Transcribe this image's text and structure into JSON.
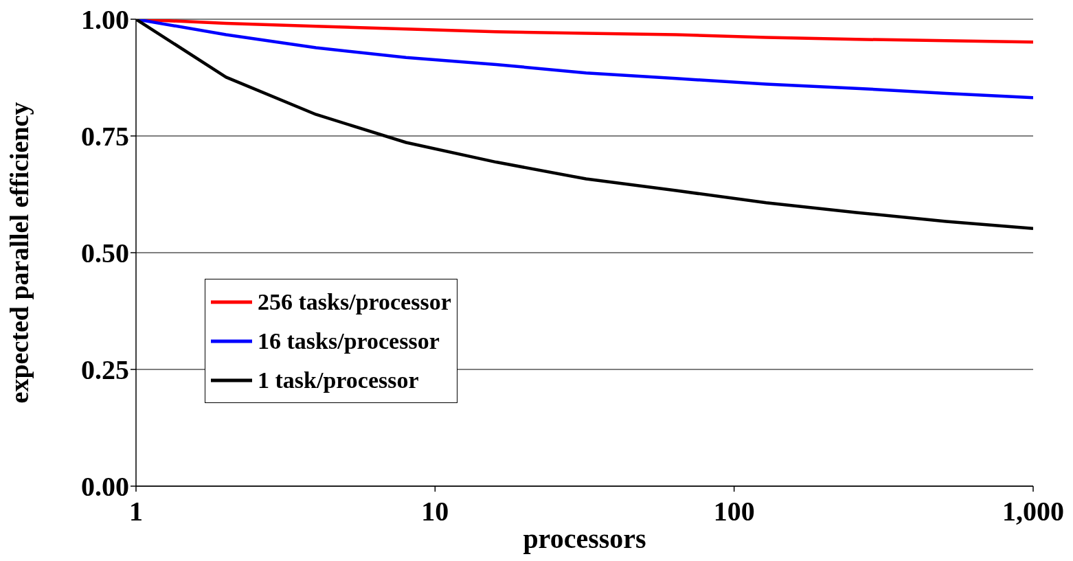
{
  "chart_data": {
    "type": "line",
    "xlabel": "processors",
    "ylabel": "expected parallel efficiency",
    "log": "x",
    "xlim": [
      1,
      1000
    ],
    "xticks": [
      1,
      10,
      100,
      {
        "value": 1000,
        "label": "1,000"
      }
    ],
    "ylim": [
      0,
      1
    ],
    "yticks": [
      {
        "value": 0,
        "label": "0.00"
      },
      {
        "value": 0.25,
        "label": "0.25"
      },
      {
        "value": 0.5,
        "label": "0.50"
      },
      {
        "value": 0.75,
        "label": "0.75"
      },
      {
        "value": 1,
        "label": "1.00"
      }
    ],
    "grid": "y",
    "legend": "left",
    "marker": "none",
    "line_style": "solid",
    "x": [
      1,
      2,
      4,
      8,
      16,
      32,
      64,
      128,
      256,
      512,
      1000
    ],
    "series": [
      {
        "name": "256 tasks/processor",
        "color": "#ff0000",
        "values": [
          1.0,
          0.991,
          0.985,
          0.979,
          0.973,
          0.97,
          0.967,
          0.961,
          0.957,
          0.954,
          0.951
        ]
      },
      {
        "name": "16 tasks/processor",
        "color": "#0000ff",
        "values": [
          1.0,
          0.967,
          0.939,
          0.918,
          0.903,
          0.885,
          0.873,
          0.861,
          0.852,
          0.841,
          0.832
        ]
      },
      {
        "name": "1 task/processor",
        "color": "#000000",
        "values": [
          1.0,
          0.876,
          0.796,
          0.736,
          0.694,
          0.658,
          0.633,
          0.607,
          0.586,
          0.567,
          0.552
        ]
      }
    ]
  }
}
